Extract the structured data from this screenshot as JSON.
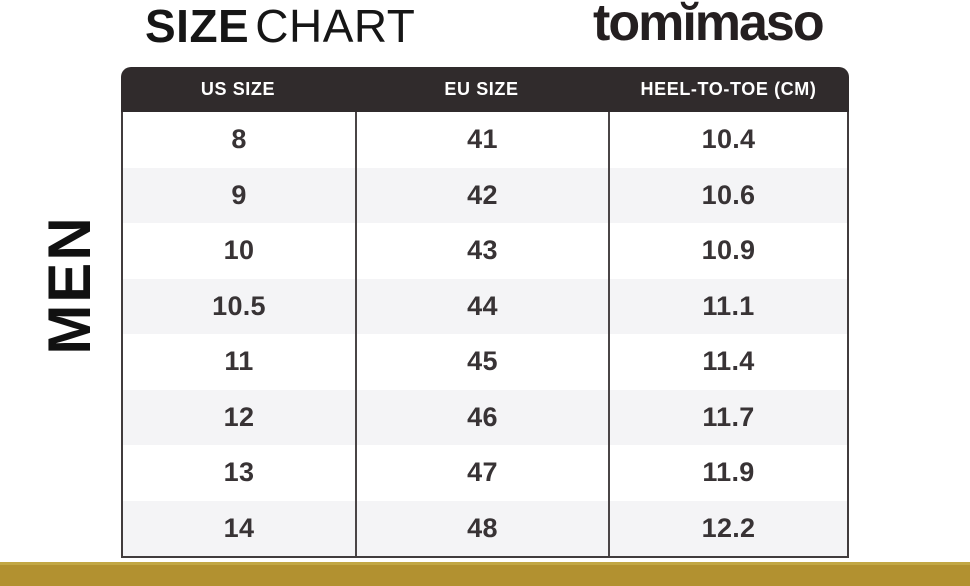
{
  "header": {
    "title_bold": "SIZE",
    "title_regular": "CHART",
    "brand_logo": "tomĭmaso"
  },
  "section_label": "MEN",
  "chart_data": {
    "type": "table",
    "title": "SIZE CHART",
    "section": "MEN",
    "columns": [
      "US SIZE",
      "EU SIZE",
      "HEEL-TO-TOE (CM)"
    ],
    "rows": [
      [
        "8",
        "41",
        "10.4"
      ],
      [
        "9",
        "42",
        "10.6"
      ],
      [
        "10",
        "43",
        "10.9"
      ],
      [
        "10.5",
        "44",
        "11.1"
      ],
      [
        "11",
        "45",
        "11.4"
      ],
      [
        "12",
        "46",
        "11.7"
      ],
      [
        "13",
        "47",
        "11.9"
      ],
      [
        "14",
        "48",
        "12.2"
      ]
    ]
  },
  "colors": {
    "header_bg": "#302b2c",
    "row_bg": "#ffffff",
    "row_alt_bg": "#f4f4f6",
    "cell_text": "#383335",
    "divider": "#4a4546",
    "border": "#413c3d",
    "accent_gold": "#b29130",
    "accent_gold_light": "#c2a744"
  }
}
